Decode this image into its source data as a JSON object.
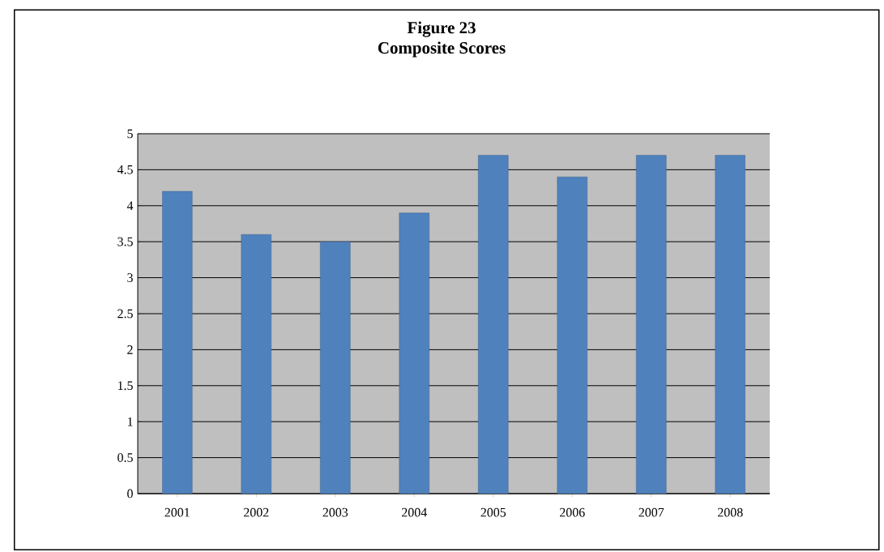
{
  "chart_data": {
    "type": "bar",
    "title": "Figure 23",
    "subtitle": "Composite Scores",
    "categories": [
      "2001",
      "2002",
      "2003",
      "2004",
      "2005",
      "2006",
      "2007",
      "2008"
    ],
    "values": [
      4.2,
      3.6,
      3.5,
      3.9,
      4.7,
      4.4,
      4.7,
      4.7
    ],
    "color": "#4f81bd",
    "ylim": [
      0,
      5
    ],
    "yticks": [
      0,
      0.5,
      1,
      1.5,
      2,
      2.5,
      3,
      3.5,
      4,
      4.5,
      5
    ],
    "grid": "y"
  }
}
